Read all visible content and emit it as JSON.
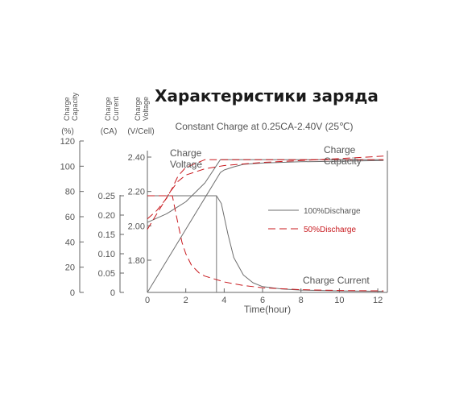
{
  "chart_data": {
    "type": "line",
    "title": "Характеристики заряда",
    "subtitle": "Constant Charge at 0.25CA-2.40V  (25℃)",
    "xlabel": "Time(hour)",
    "xlim": [
      0,
      12.5
    ],
    "xticks": [
      0,
      2,
      4,
      6,
      8,
      10,
      12
    ],
    "axes": {
      "capacity": {
        "label_lines": [
          "Charge",
          "Capacity"
        ],
        "unit": "(%)",
        "range": [
          0,
          120
        ],
        "ticks": [
          0,
          20,
          40,
          60,
          80,
          100,
          120
        ]
      },
      "current": {
        "label_lines": [
          "Charge",
          "Current"
        ],
        "unit": "(CA)",
        "range": [
          0,
          0.25
        ],
        "ticks": [
          "0",
          "0.05",
          "0.10",
          "0.15",
          "0.20",
          "0.25"
        ]
      },
      "voltage": {
        "label_lines": [
          "Charge",
          "Voltage"
        ],
        "unit": "(V/Cell)",
        "range": [
          1.6,
          2.45
        ],
        "ticks": [
          "1.80",
          "2.00",
          "2.20",
          "2.40"
        ]
      }
    },
    "legend": {
      "position": "right-middle",
      "items": [
        {
          "label": "100%Discharge",
          "style": "solid",
          "color": "#6e6e6e"
        },
        {
          "label": "50%Discharge",
          "style": "dashed",
          "color": "#c8191e"
        }
      ]
    },
    "annotations": [
      {
        "text_lines": [
          "Charge",
          "Voltage"
        ]
      },
      {
        "text_lines": [
          "Charge",
          "Capacity"
        ]
      },
      {
        "text_lines": [
          "Charge Current"
        ]
      }
    ],
    "series": [
      {
        "curve": "voltage",
        "discharge": "100%",
        "axis": "voltage",
        "x": [
          0,
          1,
          2,
          3,
          3.8,
          4,
          6,
          8,
          10,
          12.3
        ],
        "y": [
          2.02,
          2.07,
          2.14,
          2.25,
          2.385,
          2.385,
          2.385,
          2.385,
          2.385,
          2.385
        ]
      },
      {
        "curve": "capacity",
        "discharge": "100%",
        "axis": "capacity",
        "x": [
          0,
          3.8,
          4,
          4.5,
          5,
          6,
          8,
          10,
          12.3
        ],
        "y": [
          0,
          95,
          97,
          99.5,
          101.5,
          102.5,
          103.5,
          104,
          104.5
        ]
      },
      {
        "curve": "current",
        "discharge": "100%",
        "axis": "current",
        "x": [
          0,
          3.6,
          3.85,
          4.2,
          4.5,
          5,
          5.5,
          6,
          7,
          8,
          10,
          12.3
        ],
        "y": [
          0.25,
          0.25,
          0.23,
          0.15,
          0.09,
          0.045,
          0.025,
          0.015,
          0.009,
          0.006,
          0.004,
          0.003
        ]
      },
      {
        "curve": "voltage",
        "discharge": "50%",
        "axis": "voltage",
        "x": [
          0,
          0.5,
          1,
          1.3,
          1.6,
          2,
          3,
          4,
          6,
          8,
          10,
          12.3
        ],
        "y": [
          2.04,
          2.09,
          2.16,
          2.22,
          2.29,
          2.34,
          2.385,
          2.385,
          2.385,
          2.385,
          2.385,
          2.385
        ]
      },
      {
        "curve": "capacity",
        "discharge": "50%",
        "axis": "capacity",
        "x": [
          0,
          1.2,
          1.6,
          2,
          3,
          4,
          6,
          8,
          10,
          12.3
        ],
        "y": [
          50,
          80,
          88,
          93,
          98,
          100.5,
          103,
          104.5,
          106,
          108
        ]
      },
      {
        "curve": "current",
        "discharge": "50%",
        "axis": "current",
        "x": [
          0,
          1.3,
          1.5,
          1.8,
          2,
          2.3,
          2.7,
          3,
          4,
          5,
          6,
          8,
          10,
          12.3
        ],
        "y": [
          0.25,
          0.25,
          0.2,
          0.13,
          0.1,
          0.07,
          0.05,
          0.042,
          0.027,
          0.018,
          0.012,
          0.007,
          0.005,
          0.004
        ]
      }
    ]
  }
}
